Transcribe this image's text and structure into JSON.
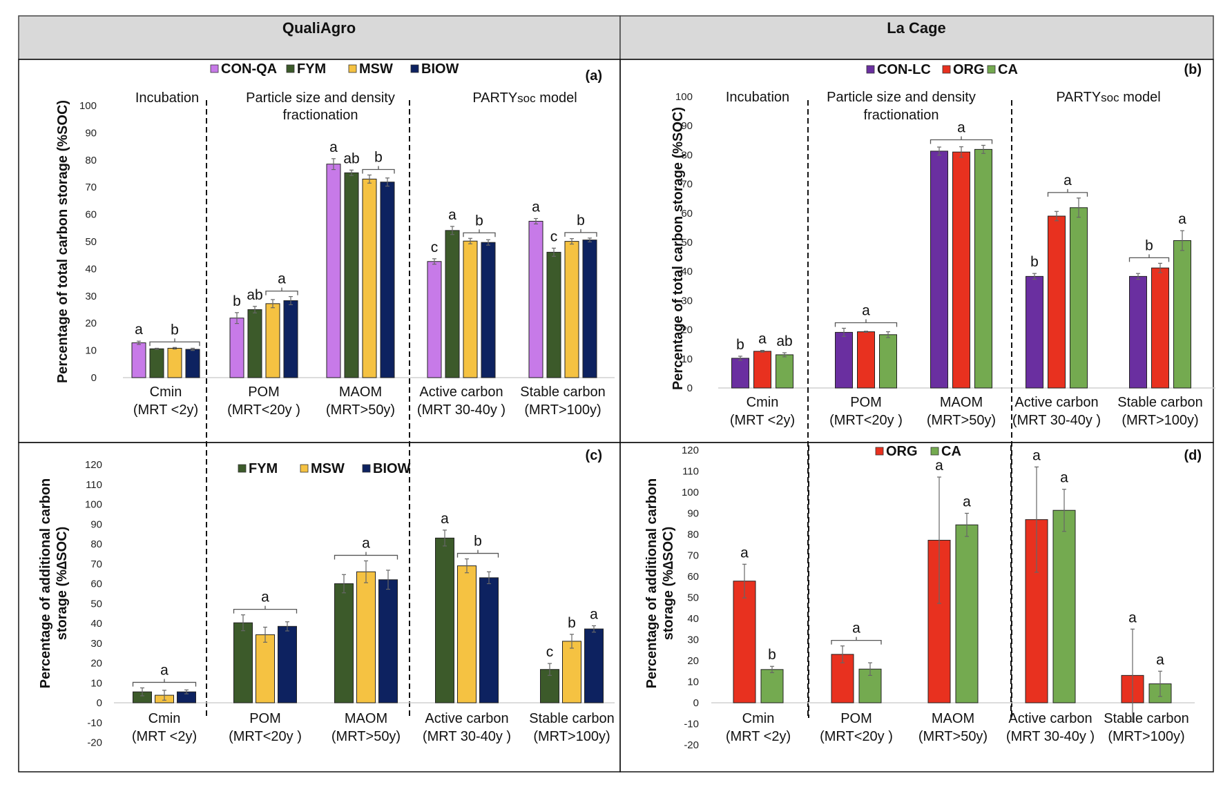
{
  "headers": {
    "left": "QualiAgro",
    "right": "La Cage"
  },
  "section_labels": {
    "incubation": "Incubation",
    "fractionation_1": "Particle size and density",
    "fractionation_2": "fractionation",
    "partysoc_main": "PARTY",
    "partysoc_sub": "SOC",
    "partysoc_tail": " model"
  },
  "categories": [
    {
      "name": "Cmin",
      "mrt": "(MRT <2y)"
    },
    {
      "name": "POM",
      "mrt": "(MRT<20y )"
    },
    {
      "name": "MAOM",
      "mrt": "(MRT>50y)"
    },
    {
      "name": "Active carbon",
      "mrt": "(MRT 30-40y )"
    },
    {
      "name": "Stable carbon",
      "mrt": "(MRT>100y)"
    }
  ],
  "colors": {
    "CON-QA": "#c77ae8",
    "FYM": "#3c5a2a",
    "MSW": "#f5c242",
    "BIOW": "#0d2260",
    "CON-LC": "#6a2fa0",
    "ORG": "#e8311f",
    "CA": "#74aa50"
  },
  "chart_data": [
    {
      "panel": "(a)",
      "type": "bar",
      "site": "QualiAgro",
      "ylabel": "Percentage of total carbon storage (%SOC)",
      "ylim": [
        0,
        100
      ],
      "yticks": [
        0,
        10,
        20,
        30,
        40,
        50,
        60,
        70,
        80,
        90,
        100
      ],
      "legend": [
        "CON-QA",
        "FYM",
        "MSW",
        "BIOW"
      ],
      "legend_position": "top",
      "series": [
        {
          "name": "CON-QA",
          "values": [
            12.8,
            21.9,
            78.5,
            42.7,
            57.5
          ],
          "errors": [
            0.6,
            2.0,
            2.0,
            1.0,
            1.0
          ]
        },
        {
          "name": "FYM",
          "values": [
            10.6,
            25.0,
            75.3,
            54.1,
            46.1
          ],
          "errors": [
            0.2,
            1.2,
            1.0,
            1.5,
            1.5
          ]
        },
        {
          "name": "MSW",
          "values": [
            10.8,
            27.2,
            73.0,
            50.2,
            50.1
          ],
          "errors": [
            0.3,
            1.5,
            1.5,
            1.0,
            1.0
          ]
        },
        {
          "name": "BIOW",
          "values": [
            10.4,
            28.3,
            71.9,
            49.7,
            50.6
          ],
          "errors": [
            0.4,
            1.5,
            1.5,
            1.0,
            0.7
          ]
        }
      ],
      "letters": [
        {
          "cat": 0,
          "text": "a",
          "series": 0
        },
        {
          "cat": 0,
          "text": "b",
          "group": [
            1,
            3
          ]
        },
        {
          "cat": 1,
          "text": "b",
          "series": 0
        },
        {
          "cat": 1,
          "text": "ab",
          "series": 1
        },
        {
          "cat": 1,
          "text": "a",
          "group": [
            2,
            3
          ]
        },
        {
          "cat": 2,
          "text": "a",
          "series": 0
        },
        {
          "cat": 2,
          "text": "ab",
          "series": 1
        },
        {
          "cat": 2,
          "text": "b",
          "group": [
            2,
            3
          ]
        },
        {
          "cat": 3,
          "text": "c",
          "series": 0
        },
        {
          "cat": 3,
          "text": "a",
          "series": 1
        },
        {
          "cat": 3,
          "text": "b",
          "group": [
            2,
            3
          ]
        },
        {
          "cat": 4,
          "text": "a",
          "series": 0
        },
        {
          "cat": 4,
          "text": "c",
          "series": 1
        },
        {
          "cat": 4,
          "text": "b",
          "group": [
            2,
            3
          ]
        }
      ]
    },
    {
      "panel": "(b)",
      "type": "bar",
      "site": "La Cage",
      "ylabel": "Percentage of total carbon storage (%SOC)",
      "ylim": [
        0,
        100
      ],
      "yticks": [
        0,
        10,
        20,
        30,
        40,
        50,
        60,
        70,
        80,
        90,
        100
      ],
      "legend": [
        "CON-LC",
        "ORG",
        "CA"
      ],
      "legend_position": "top",
      "series": [
        {
          "name": "CON-LC",
          "values": [
            10.2,
            19.1,
            81.3,
            38.3,
            38.3
          ],
          "errors": [
            0.7,
            1.4,
            1.4,
            1.0,
            1.0
          ]
        },
        {
          "name": "ORG",
          "values": [
            12.6,
            19.3,
            81.0,
            59.0,
            41.2
          ],
          "errors": [
            0.3,
            0.2,
            1.8,
            1.6,
            1.6
          ]
        },
        {
          "name": "CA",
          "values": [
            11.4,
            18.3,
            81.9,
            61.9,
            50.6
          ],
          "errors": [
            0.7,
            1.0,
            1.4,
            3.3,
            3.4
          ]
        }
      ],
      "letters": [
        {
          "cat": 0,
          "text": "b",
          "series": 0
        },
        {
          "cat": 0,
          "text": "a",
          "series": 1
        },
        {
          "cat": 0,
          "text": "ab",
          "series": 2
        },
        {
          "cat": 1,
          "text": "a",
          "group": [
            0,
            2
          ]
        },
        {
          "cat": 2,
          "text": "a",
          "group": [
            0,
            2
          ]
        },
        {
          "cat": 3,
          "text": "b",
          "series": 0
        },
        {
          "cat": 3,
          "text": "a",
          "group": [
            1,
            2
          ]
        },
        {
          "cat": 4,
          "text": "b",
          "group": [
            0,
            1
          ]
        },
        {
          "cat": 4,
          "text": "a",
          "series": 2
        }
      ]
    },
    {
      "panel": "(c)",
      "type": "bar",
      "site": "QualiAgro",
      "ylabel_1": "Percentage of additional carbon",
      "ylabel_2": "storage (%∆SOC)",
      "ylim": [
        -20,
        120
      ],
      "yticks": [
        -20,
        -10,
        0,
        10,
        20,
        30,
        40,
        50,
        60,
        70,
        80,
        90,
        100,
        110,
        120
      ],
      "legend": [
        "FYM",
        "MSW",
        "BIOW"
      ],
      "legend_position": "top",
      "series": [
        {
          "name": "FYM",
          "values": [
            5.5,
            40.3,
            60.0,
            83.0,
            16.8
          ],
          "errors": [
            2.0,
            4.0,
            4.6,
            4.0,
            3.0
          ]
        },
        {
          "name": "MSW",
          "values": [
            3.8,
            34.3,
            66.0,
            69.0,
            31.0
          ],
          "errors": [
            2.5,
            3.8,
            5.5,
            3.5,
            3.5
          ]
        },
        {
          "name": "BIOW",
          "values": [
            5.5,
            38.5,
            62.0,
            63.0,
            37.2
          ],
          "errors": [
            1.0,
            2.3,
            4.8,
            3.0,
            1.6
          ]
        }
      ],
      "letters": [
        {
          "cat": 0,
          "text": "a",
          "group": [
            0,
            2
          ]
        },
        {
          "cat": 1,
          "text": "a",
          "group": [
            0,
            2
          ]
        },
        {
          "cat": 2,
          "text": "a",
          "group": [
            0,
            2
          ]
        },
        {
          "cat": 3,
          "text": "a",
          "series": 0
        },
        {
          "cat": 3,
          "text": "b",
          "group": [
            1,
            2
          ]
        },
        {
          "cat": 4,
          "text": "c",
          "series": 0
        },
        {
          "cat": 4,
          "text": "b",
          "series": 1
        },
        {
          "cat": 4,
          "text": "a",
          "series": 2
        }
      ]
    },
    {
      "panel": "(d)",
      "type": "bar",
      "site": "La Cage",
      "ylabel_1": "Percentage of additional carbon",
      "ylabel_2": "storage (%∆SOC)",
      "ylim": [
        -20,
        120
      ],
      "yticks": [
        -20,
        -10,
        0,
        10,
        20,
        30,
        40,
        50,
        60,
        70,
        80,
        90,
        100,
        110,
        120
      ],
      "legend": [
        "ORG",
        "CA"
      ],
      "legend_position": "top",
      "series": [
        {
          "name": "ORG",
          "values": [
            57.8,
            23.0,
            77.2,
            87.0,
            13.0
          ],
          "errors": [
            8.0,
            4.0,
            30.0,
            25.0,
            22.0
          ]
        },
        {
          "name": "CA",
          "values": [
            15.8,
            16.0,
            84.5,
            91.4,
            9.0
          ],
          "errors": [
            1.5,
            3.0,
            5.5,
            10.0,
            6.0
          ]
        }
      ],
      "letters": [
        {
          "cat": 0,
          "text": "a",
          "series": 0
        },
        {
          "cat": 0,
          "text": "b",
          "series": 1
        },
        {
          "cat": 1,
          "text": "a",
          "group": [
            0,
            1
          ]
        },
        {
          "cat": 2,
          "text": "a",
          "series": 0
        },
        {
          "cat": 2,
          "text": "a",
          "series": 1
        },
        {
          "cat": 3,
          "text": "a",
          "series": 0
        },
        {
          "cat": 3,
          "text": "a",
          "series": 1
        },
        {
          "cat": 4,
          "text": "a",
          "series": 0
        },
        {
          "cat": 4,
          "text": "a",
          "series": 1
        }
      ]
    }
  ]
}
